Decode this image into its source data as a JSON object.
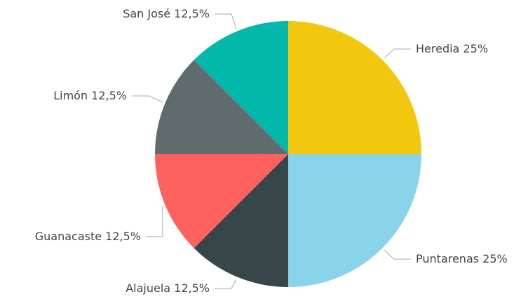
{
  "chart_data": {
    "type": "pie",
    "categories": [
      "Heredia",
      "Puntarenas",
      "Alajuela",
      "Guanacaste",
      "Limón",
      "San José"
    ],
    "values": [
      25,
      25,
      12.5,
      12.5,
      12.5,
      12.5
    ],
    "value_labels": [
      "25%",
      "25%",
      "12,5%",
      "12,5%",
      "12,5%",
      "12,5%"
    ],
    "colors": [
      "#f2c80f",
      "#8ad4eb",
      "#374649",
      "#fd625e",
      "#5f6b6d",
      "#01b8aa"
    ]
  }
}
